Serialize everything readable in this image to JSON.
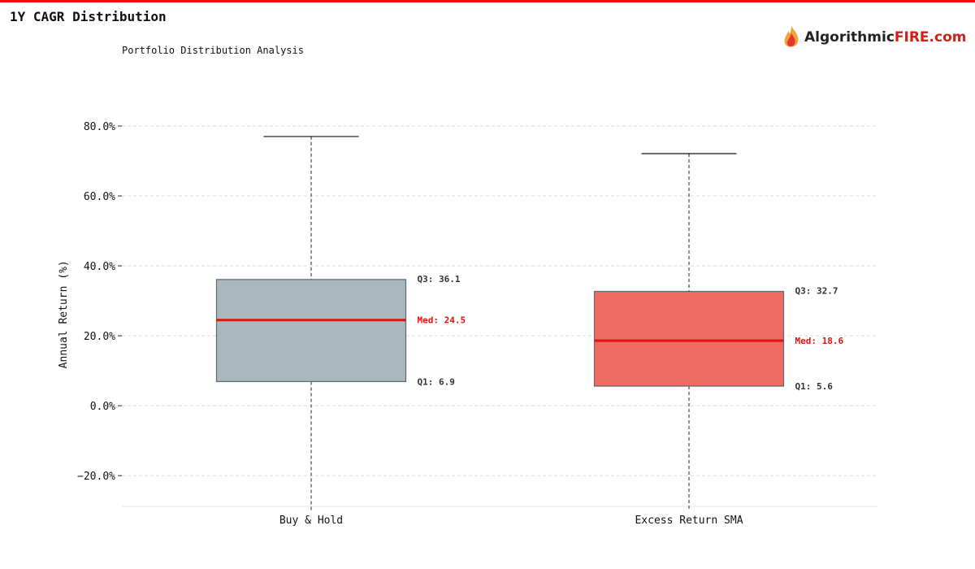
{
  "title": "1Y CAGR Distribution",
  "logo": {
    "text_a": "Algorithmic",
    "text_b": "FIRE.com"
  },
  "colors": {
    "accent": "#e3120b",
    "buy_hold": "#a9b7bf",
    "sma": "#ec6a62",
    "median": "#e3120b"
  },
  "chart_data": {
    "type": "box",
    "title": "Portfolio Distribution Analysis",
    "ylabel": "Annual Return (%)",
    "xlabel": "",
    "ylim": [
      -28.8,
      88
    ],
    "yticks": [
      -20,
      0,
      20,
      40,
      60,
      80
    ],
    "ytick_labels": [
      "−20.0%",
      "0.0%",
      "20.0%",
      "40.0%",
      "60.0%",
      "80.0%"
    ],
    "grid": true,
    "categories": [
      "Buy & Hold",
      "Excess Return SMA"
    ],
    "series": [
      {
        "name": "Buy & Hold",
        "q1": 6.9,
        "median": 24.5,
        "q3": 36.1,
        "whisker_high": 77.0,
        "whisker_low_clipped": true,
        "labels": {
          "q3": "Q3: 36.1",
          "median": "Med: 24.5",
          "q1": "Q1: 6.9"
        }
      },
      {
        "name": "Excess Return SMA",
        "q1": 5.6,
        "median": 18.6,
        "q3": 32.7,
        "whisker_high": 72.1,
        "whisker_low_clipped": true,
        "labels": {
          "q3": "Q3: 32.7",
          "median": "Med: 18.6",
          "q1": "Q1: 5.6"
        }
      }
    ]
  }
}
